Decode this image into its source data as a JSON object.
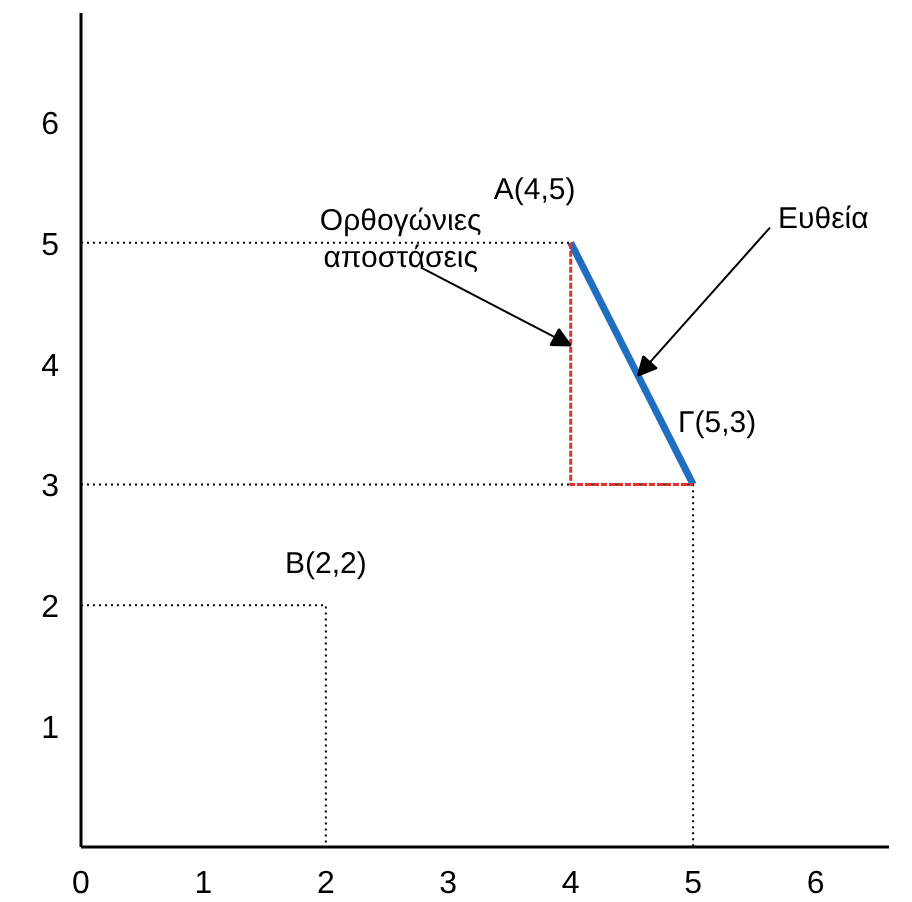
{
  "chart_data": {
    "type": "line",
    "xlim": [
      0,
      6.6
    ],
    "ylim": [
      0,
      6.9
    ],
    "xticks": [
      0,
      1,
      2,
      3,
      4,
      5,
      6
    ],
    "yticks": [
      1,
      2,
      3,
      4,
      5,
      6
    ],
    "grid": false,
    "series": [
      {
        "x": [
          0,
          4
        ],
        "values": [
          5,
          5
        ],
        "color": "#000000",
        "line_style": "dotted"
      },
      {
        "x": [
          0,
          5,
          5
        ],
        "values": [
          3,
          3,
          0
        ],
        "color": "#000000",
        "line_style": "dotted"
      },
      {
        "x": [
          0,
          2,
          2
        ],
        "values": [
          2,
          2,
          0
        ],
        "color": "#000000",
        "line_style": "dotted"
      },
      {
        "x": [
          4,
          4,
          5
        ],
        "values": [
          5,
          3,
          3
        ],
        "color": "#e8302a",
        "line_style": "dashed"
      },
      {
        "x": [
          4,
          5
        ],
        "values": [
          5,
          3
        ],
        "color": "#1f6fc0",
        "line_style": "solid"
      }
    ],
    "annotations": [
      {
        "text": "A(4,5)",
        "x": 4,
        "y": 5
      },
      {
        "text": "Γ(5,3)",
        "x": 5,
        "y": 3
      },
      {
        "text": "B(2,2)",
        "x": 2,
        "y": 2
      },
      {
        "text": "Ευθεία",
        "x": 4.55,
        "y": 3.9
      },
      {
        "text": "Ορθογώνιες\nαποστάσεις",
        "x": 4,
        "y": 4.15
      }
    ]
  }
}
